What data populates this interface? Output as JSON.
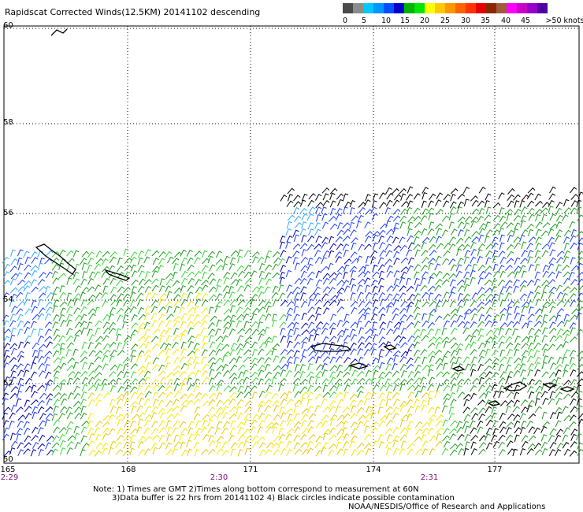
{
  "title": "Rapidscat Corrected Winds(12.5KM) 20141102 descending",
  "colorbar": {
    "colors": [
      "#4a4a4a",
      "#8c8c8c",
      "#00c8ff",
      "#0096ff",
      "#0050ff",
      "#0000cc",
      "#00b400",
      "#00e600",
      "#ffff00",
      "#ffc800",
      "#ff9600",
      "#ff6400",
      "#ff3200",
      "#e60000",
      "#8c2800",
      "#a05a3c",
      "#ff00ff",
      "#c800c8",
      "#9600c8",
      "#5000a0"
    ],
    "tick_labels": [
      "0",
      "5",
      "10",
      "15",
      "20",
      "25",
      "30",
      "35",
      "40",
      "45",
      ">50 knots"
    ]
  },
  "map": {
    "lat_labels": [
      "60",
      "58",
      "56",
      "54",
      "52",
      "50"
    ],
    "lon_labels": [
      "165",
      "168",
      "171",
      "174",
      "177"
    ],
    "time_labels": [
      "2:29",
      "2:30",
      "2:31"
    ]
  },
  "notes": {
    "line1": "Note: 1) Times are GMT 2)Times along bottom correspond to measurement at 60N",
    "line2": "3)Data buffer is 22 hrs from 20141102 4) Black circles indicate possible contamination",
    "credit": "NOAA/NESDIS/Office of Research and Applications"
  }
}
